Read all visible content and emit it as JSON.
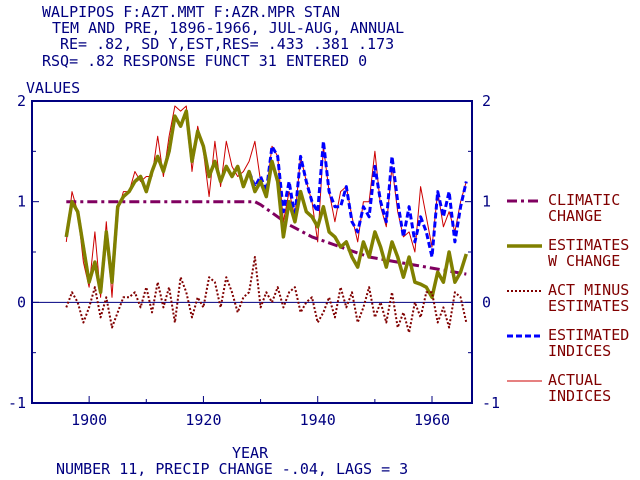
{
  "header": {
    "line1": "WALPIPOS  F:AZT.MMT  F:AZR.MPR    STAN",
    "line2": "TEM AND PRE, 1896-1966, JUL-AUG, ANNUAL",
    "line3": "RE=   .82, SD Y,EST,RES= .433 .381 .173",
    "line4": "RSQ=  .82 RESPONSE FUNCT 31 ENTERED    0"
  },
  "footer": {
    "xlabel": "YEAR",
    "note": "NUMBER 11, PRECIP CHANGE -.04, LAGS = 3"
  },
  "colors": {
    "axis": "#000080",
    "climatic": "#800060",
    "estimates_w_change": "#808000",
    "act_minus": "#800000",
    "estimated_indices": "#0000FF",
    "actual": "#CC0000",
    "legend_text": "#800000"
  },
  "chart_data": {
    "type": "line",
    "ylabel": "VALUES",
    "xlabel": "YEAR",
    "xlim": [
      1890,
      1967
    ],
    "ylim": [
      -1,
      2
    ],
    "x_ticks": [
      1900,
      1920,
      1940,
      1960
    ],
    "y_ticks": [
      -1,
      0,
      1,
      2
    ],
    "legend_position": "right",
    "x": [
      1896,
      1897,
      1898,
      1899,
      1900,
      1901,
      1902,
      1903,
      1904,
      1905,
      1906,
      1907,
      1908,
      1909,
      1910,
      1911,
      1912,
      1913,
      1914,
      1915,
      1916,
      1917,
      1918,
      1919,
      1920,
      1921,
      1922,
      1923,
      1924,
      1925,
      1926,
      1927,
      1928,
      1929,
      1930,
      1931,
      1932,
      1933,
      1934,
      1935,
      1936,
      1937,
      1938,
      1939,
      1940,
      1941,
      1942,
      1943,
      1944,
      1945,
      1946,
      1947,
      1948,
      1949,
      1950,
      1951,
      1952,
      1953,
      1954,
      1955,
      1956,
      1957,
      1958,
      1959,
      1960,
      1961,
      1962,
      1963,
      1964,
      1965,
      1966
    ],
    "series": [
      {
        "name": "CLIMATIC CHANGE",
        "style": "dashdot",
        "values": [
          1.0,
          1.0,
          1.0,
          1.0,
          1.0,
          1.0,
          1.0,
          1.0,
          1.0,
          1.0,
          1.0,
          1.0,
          1.0,
          1.0,
          1.0,
          1.0,
          1.0,
          1.0,
          1.0,
          1.0,
          1.0,
          1.0,
          1.0,
          1.0,
          1.0,
          1.0,
          1.0,
          1.0,
          1.0,
          1.0,
          1.0,
          1.0,
          1.0,
          1.0,
          0.97,
          0.93,
          0.89,
          0.85,
          0.81,
          0.77,
          0.74,
          0.71,
          0.68,
          0.65,
          0.63,
          0.61,
          0.59,
          0.57,
          0.55,
          0.53,
          0.51,
          0.49,
          0.47,
          0.45,
          0.44,
          0.43,
          0.42,
          0.41,
          0.4,
          0.39,
          0.38,
          0.37,
          0.36,
          0.35,
          0.34,
          0.33,
          0.32,
          0.31,
          0.3,
          0.29,
          0.28
        ]
      },
      {
        "name": "ESTIMATES W CHANGE",
        "style": "thick",
        "values": [
          0.65,
          1.0,
          0.9,
          0.55,
          0.2,
          0.4,
          0.1,
          0.7,
          0.2,
          0.95,
          1.05,
          1.1,
          1.2,
          1.25,
          1.1,
          1.3,
          1.45,
          1.3,
          1.5,
          1.85,
          1.75,
          1.9,
          1.4,
          1.7,
          1.55,
          1.25,
          1.4,
          1.2,
          1.35,
          1.25,
          1.35,
          1.15,
          1.3,
          1.1,
          1.2,
          1.05,
          1.4,
          1.2,
          0.65,
          1.0,
          0.8,
          1.1,
          0.9,
          0.85,
          0.75,
          0.95,
          0.7,
          0.65,
          0.55,
          0.6,
          0.45,
          0.35,
          0.6,
          0.45,
          0.7,
          0.55,
          0.35,
          0.6,
          0.45,
          0.25,
          0.45,
          0.2,
          0.18,
          0.15,
          0.05,
          0.3,
          0.2,
          0.5,
          0.2,
          0.3,
          0.48
        ]
      },
      {
        "name": "ACT MINUS ESTIMATES",
        "style": "dotted",
        "values": [
          -0.05,
          0.1,
          0.0,
          -0.2,
          -0.05,
          0.15,
          -0.15,
          0.05,
          -0.25,
          -0.1,
          0.05,
          0.05,
          0.1,
          -0.05,
          0.15,
          -0.1,
          0.2,
          -0.05,
          0.15,
          -0.2,
          0.25,
          0.1,
          -0.15,
          0.05,
          -0.05,
          0.25,
          0.2,
          -0.05,
          0.25,
          0.1,
          -0.1,
          0.05,
          0.1,
          0.45,
          -0.05,
          0.1,
          0.0,
          0.15,
          -0.05,
          0.1,
          0.15,
          -0.1,
          0.0,
          0.05,
          -0.2,
          -0.1,
          0.05,
          -0.15,
          0.15,
          -0.05,
          0.1,
          -0.2,
          -0.05,
          0.15,
          -0.15,
          0.0,
          -0.2,
          0.1,
          -0.25,
          -0.1,
          -0.3,
          0.0,
          -0.15,
          0.1,
          0.1,
          -0.2,
          -0.05,
          -0.25,
          0.1,
          0.05,
          -0.2
        ]
      },
      {
        "name": "ESTIMATED INDICES",
        "style": "dashed",
        "values": [
          0.65,
          1.0,
          0.9,
          0.55,
          0.2,
          0.4,
          0.1,
          0.7,
          0.2,
          0.95,
          1.05,
          1.1,
          1.2,
          1.25,
          1.1,
          1.3,
          1.45,
          1.3,
          1.5,
          1.85,
          1.75,
          1.9,
          1.4,
          1.7,
          1.55,
          1.25,
          1.4,
          1.2,
          1.35,
          1.25,
          1.35,
          1.15,
          1.3,
          1.15,
          1.25,
          1.1,
          1.55,
          1.45,
          0.9,
          1.2,
          0.85,
          1.45,
          1.2,
          1.0,
          0.9,
          1.6,
          1.1,
          0.95,
          0.95,
          1.15,
          0.8,
          0.7,
          0.95,
          0.85,
          1.35,
          1.0,
          0.8,
          1.45,
          1.0,
          0.65,
          0.95,
          0.6,
          0.85,
          0.7,
          0.45,
          1.1,
          0.85,
          1.1,
          0.6,
          0.95,
          1.2
        ]
      },
      {
        "name": "ACTUAL INDICES",
        "style": "thin",
        "values": [
          0.6,
          1.1,
          0.9,
          0.4,
          0.15,
          0.7,
          0.05,
          0.8,
          0.05,
          0.9,
          1.1,
          1.1,
          1.3,
          1.2,
          1.25,
          1.25,
          1.65,
          1.25,
          1.65,
          1.95,
          1.9,
          1.95,
          1.3,
          1.75,
          1.5,
          1.05,
          1.6,
          1.15,
          1.6,
          1.35,
          1.25,
          1.3,
          1.4,
          1.6,
          1.2,
          1.1,
          1.55,
          1.45,
          0.8,
          1.1,
          0.85,
          1.45,
          1.2,
          1.0,
          0.6,
          1.55,
          1.1,
          0.8,
          1.1,
          1.15,
          0.85,
          0.6,
          1.0,
          1.0,
          1.5,
          0.95,
          0.75,
          1.35,
          0.9,
          0.65,
          0.7,
          0.5,
          1.15,
          0.85,
          0.55,
          1.1,
          0.75,
          0.9,
          0.7,
          1.0,
          1.2
        ]
      }
    ]
  }
}
